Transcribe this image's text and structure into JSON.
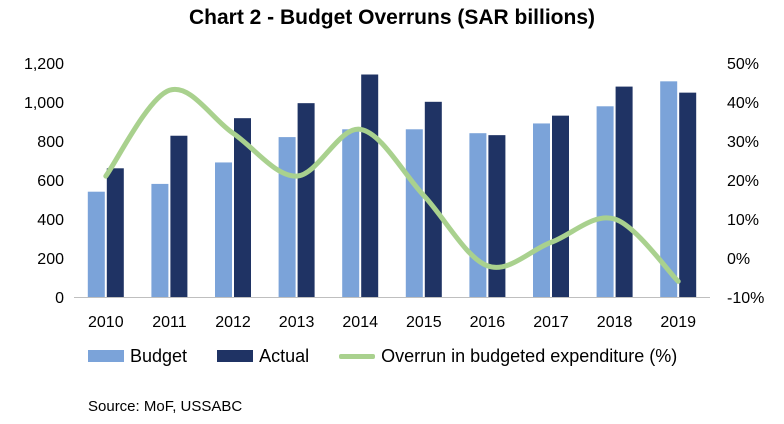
{
  "chart_data": {
    "type": "bar",
    "title": "Chart 2 - Budget Overruns (SAR billions)",
    "categories": [
      "2010",
      "2011",
      "2012",
      "2013",
      "2014",
      "2015",
      "2016",
      "2017",
      "2018",
      "2019"
    ],
    "series": [
      {
        "name": "Budget",
        "type": "bar",
        "axis": "left",
        "color": "#7ba3d9",
        "values": [
          540,
          580,
          690,
          820,
          860,
          860,
          840,
          890,
          978,
          1106
        ]
      },
      {
        "name": "Actual",
        "type": "bar",
        "axis": "left",
        "color": "#1f3364",
        "values": [
          660,
          827,
          917,
          994,
          1141,
          1001,
          830,
          930,
          1079,
          1048
        ]
      },
      {
        "name": "Overrun in budgeted expenditure (%)",
        "type": "line",
        "axis": "right",
        "color": "#a9d18e",
        "values": [
          21,
          43,
          32,
          21,
          33,
          16,
          -2,
          4,
          10,
          -6
        ]
      }
    ],
    "ylim": [
      0,
      1200
    ],
    "yticks": [
      "0",
      "200",
      "400",
      "600",
      "800",
      "1,000",
      "1,200"
    ],
    "y2lim": [
      -10,
      50
    ],
    "y2ticks": [
      "-10%",
      "0%",
      "10%",
      "20%",
      "30%",
      "40%",
      "50%"
    ],
    "legend_position": "bottom",
    "source": "Source: MoF, USSABC"
  }
}
